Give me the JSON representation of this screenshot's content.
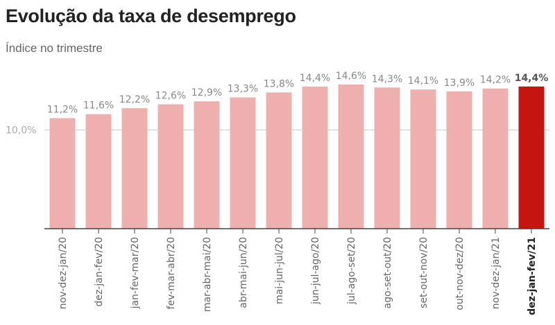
{
  "chart_data": {
    "type": "bar",
    "title": "Evolução da taxa de desemprego",
    "subtitle": "Índice no trimestre",
    "categories": [
      "nov-dez-jan/20",
      "dez-jan-fev/20",
      "jan-fev-mar/20",
      "fev-mar-abr/20",
      "mar-abr-mai/20",
      "abr-mai-jun/20",
      "mai-jun-jul/20",
      "jun-jul-ago/20",
      "jul-ago-set/20",
      "ago-set-out/20",
      "set-out-nov/20",
      "out-nov-dez/20",
      "nov-dez-jan/21",
      "dez-jan-fev/21"
    ],
    "values": [
      11.2,
      11.6,
      12.2,
      12.6,
      12.9,
      13.3,
      13.8,
      14.4,
      14.6,
      14.3,
      14.1,
      13.9,
      14.2,
      14.4
    ],
    "value_labels": [
      "11,2%",
      "11,6%",
      "12,2%",
      "12,6%",
      "12,9%",
      "13,3%",
      "13,8%",
      "14,4%",
      "14,6%",
      "14,3%",
      "14,1%",
      "13,9%",
      "14,2%",
      "14,4%"
    ],
    "highlight_index": 13,
    "y_tick": {
      "value": 10,
      "label": "10,0%"
    },
    "ylim": [
      0,
      14.6
    ],
    "xlabel": "",
    "ylabel": "",
    "colors": {
      "bar": "#eeb0ae",
      "highlight": "#c4150e",
      "axis": "#444444",
      "gridline": "#cccccc"
    }
  }
}
